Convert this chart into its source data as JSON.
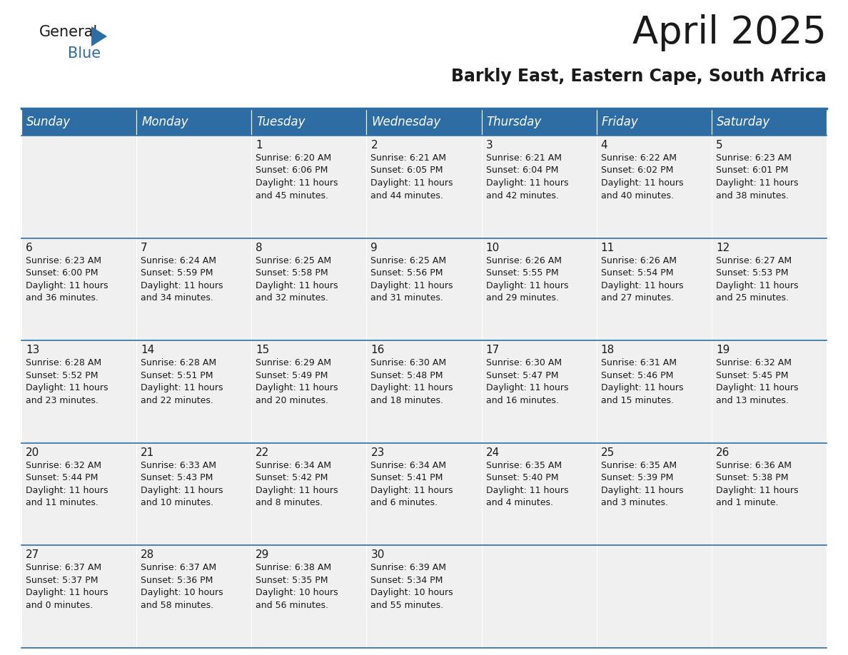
{
  "title": "April 2025",
  "subtitle": "Barkly East, Eastern Cape, South Africa",
  "header_color": "#2e6da4",
  "header_text_color": "#ffffff",
  "background_color": "#ffffff",
  "cell_bg_color": "#f0f0f0",
  "text_color": "#1a1a1a",
  "day_headers": [
    "Sunday",
    "Monday",
    "Tuesday",
    "Wednesday",
    "Thursday",
    "Friday",
    "Saturday"
  ],
  "title_fontsize": 38,
  "subtitle_fontsize": 17,
  "header_fontsize": 12,
  "cell_fontsize": 9,
  "day_num_fontsize": 11,
  "logo_general_color": "#1a1a1a",
  "logo_blue_color": "#2e6da4",
  "weeks": [
    {
      "days": [
        {
          "day": null,
          "info": null
        },
        {
          "day": null,
          "info": null
        },
        {
          "day": 1,
          "info": "Sunrise: 6:20 AM\nSunset: 6:06 PM\nDaylight: 11 hours\nand 45 minutes."
        },
        {
          "day": 2,
          "info": "Sunrise: 6:21 AM\nSunset: 6:05 PM\nDaylight: 11 hours\nand 44 minutes."
        },
        {
          "day": 3,
          "info": "Sunrise: 6:21 AM\nSunset: 6:04 PM\nDaylight: 11 hours\nand 42 minutes."
        },
        {
          "day": 4,
          "info": "Sunrise: 6:22 AM\nSunset: 6:02 PM\nDaylight: 11 hours\nand 40 minutes."
        },
        {
          "day": 5,
          "info": "Sunrise: 6:23 AM\nSunset: 6:01 PM\nDaylight: 11 hours\nand 38 minutes."
        }
      ]
    },
    {
      "days": [
        {
          "day": 6,
          "info": "Sunrise: 6:23 AM\nSunset: 6:00 PM\nDaylight: 11 hours\nand 36 minutes."
        },
        {
          "day": 7,
          "info": "Sunrise: 6:24 AM\nSunset: 5:59 PM\nDaylight: 11 hours\nand 34 minutes."
        },
        {
          "day": 8,
          "info": "Sunrise: 6:25 AM\nSunset: 5:58 PM\nDaylight: 11 hours\nand 32 minutes."
        },
        {
          "day": 9,
          "info": "Sunrise: 6:25 AM\nSunset: 5:56 PM\nDaylight: 11 hours\nand 31 minutes."
        },
        {
          "day": 10,
          "info": "Sunrise: 6:26 AM\nSunset: 5:55 PM\nDaylight: 11 hours\nand 29 minutes."
        },
        {
          "day": 11,
          "info": "Sunrise: 6:26 AM\nSunset: 5:54 PM\nDaylight: 11 hours\nand 27 minutes."
        },
        {
          "day": 12,
          "info": "Sunrise: 6:27 AM\nSunset: 5:53 PM\nDaylight: 11 hours\nand 25 minutes."
        }
      ]
    },
    {
      "days": [
        {
          "day": 13,
          "info": "Sunrise: 6:28 AM\nSunset: 5:52 PM\nDaylight: 11 hours\nand 23 minutes."
        },
        {
          "day": 14,
          "info": "Sunrise: 6:28 AM\nSunset: 5:51 PM\nDaylight: 11 hours\nand 22 minutes."
        },
        {
          "day": 15,
          "info": "Sunrise: 6:29 AM\nSunset: 5:49 PM\nDaylight: 11 hours\nand 20 minutes."
        },
        {
          "day": 16,
          "info": "Sunrise: 6:30 AM\nSunset: 5:48 PM\nDaylight: 11 hours\nand 18 minutes."
        },
        {
          "day": 17,
          "info": "Sunrise: 6:30 AM\nSunset: 5:47 PM\nDaylight: 11 hours\nand 16 minutes."
        },
        {
          "day": 18,
          "info": "Sunrise: 6:31 AM\nSunset: 5:46 PM\nDaylight: 11 hours\nand 15 minutes."
        },
        {
          "day": 19,
          "info": "Sunrise: 6:32 AM\nSunset: 5:45 PM\nDaylight: 11 hours\nand 13 minutes."
        }
      ]
    },
    {
      "days": [
        {
          "day": 20,
          "info": "Sunrise: 6:32 AM\nSunset: 5:44 PM\nDaylight: 11 hours\nand 11 minutes."
        },
        {
          "day": 21,
          "info": "Sunrise: 6:33 AM\nSunset: 5:43 PM\nDaylight: 11 hours\nand 10 minutes."
        },
        {
          "day": 22,
          "info": "Sunrise: 6:34 AM\nSunset: 5:42 PM\nDaylight: 11 hours\nand 8 minutes."
        },
        {
          "day": 23,
          "info": "Sunrise: 6:34 AM\nSunset: 5:41 PM\nDaylight: 11 hours\nand 6 minutes."
        },
        {
          "day": 24,
          "info": "Sunrise: 6:35 AM\nSunset: 5:40 PM\nDaylight: 11 hours\nand 4 minutes."
        },
        {
          "day": 25,
          "info": "Sunrise: 6:35 AM\nSunset: 5:39 PM\nDaylight: 11 hours\nand 3 minutes."
        },
        {
          "day": 26,
          "info": "Sunrise: 6:36 AM\nSunset: 5:38 PM\nDaylight: 11 hours\nand 1 minute."
        }
      ]
    },
    {
      "days": [
        {
          "day": 27,
          "info": "Sunrise: 6:37 AM\nSunset: 5:37 PM\nDaylight: 11 hours\nand 0 minutes."
        },
        {
          "day": 28,
          "info": "Sunrise: 6:37 AM\nSunset: 5:36 PM\nDaylight: 10 hours\nand 58 minutes."
        },
        {
          "day": 29,
          "info": "Sunrise: 6:38 AM\nSunset: 5:35 PM\nDaylight: 10 hours\nand 56 minutes."
        },
        {
          "day": 30,
          "info": "Sunrise: 6:39 AM\nSunset: 5:34 PM\nDaylight: 10 hours\nand 55 minutes."
        },
        {
          "day": null,
          "info": null
        },
        {
          "day": null,
          "info": null
        },
        {
          "day": null,
          "info": null
        }
      ]
    }
  ]
}
